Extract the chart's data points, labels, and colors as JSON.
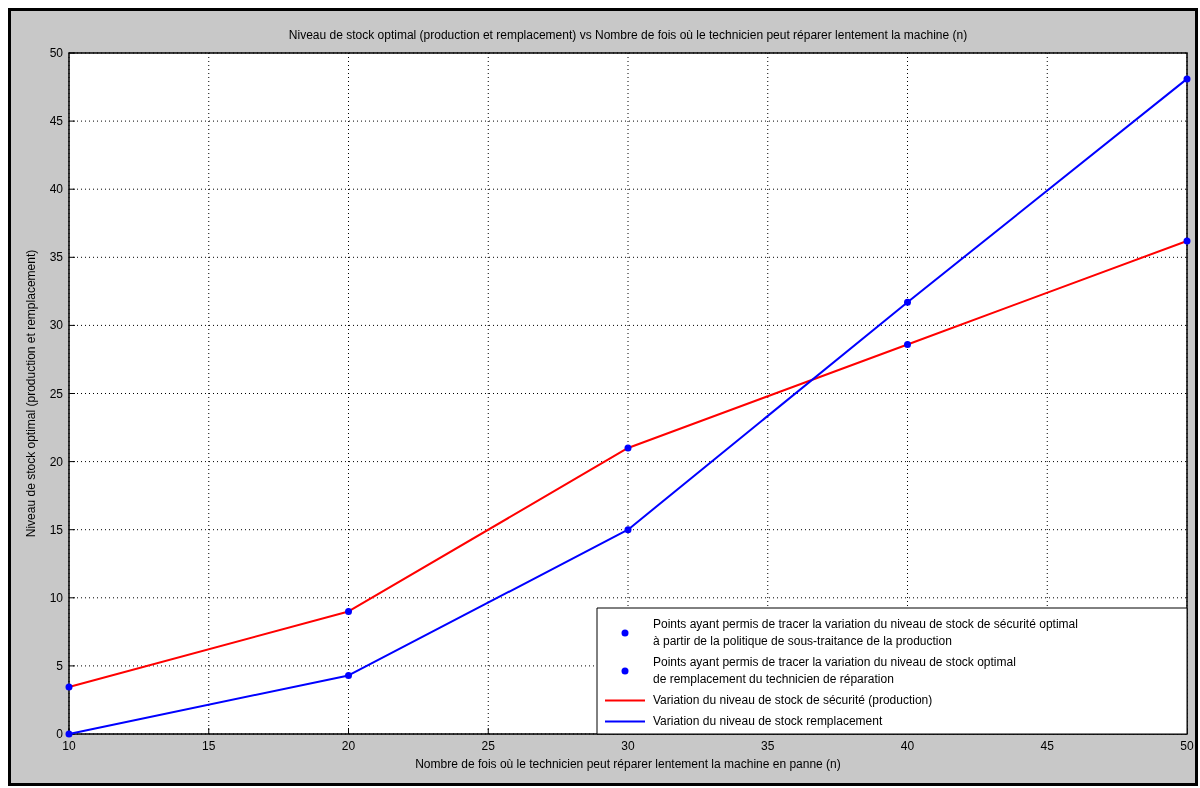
{
  "chart_data": {
    "type": "line",
    "title": "Niveau de stock optimal (production et remplacement) vs Nombre de fois où le technicien peut réparer lentement la machine (n)",
    "xlabel": "Nombre de fois où le technicien peut réparer lentement la machine en panne (n)",
    "ylabel": "Niveau de stock optimal (production et remplacement)",
    "x": [
      10,
      20,
      30,
      40,
      50
    ],
    "xlim": [
      10,
      50
    ],
    "xticks": [
      10,
      15,
      20,
      25,
      30,
      35,
      40,
      45,
      50
    ],
    "ylim": [
      0,
      50
    ],
    "yticks": [
      0,
      5,
      10,
      15,
      20,
      25,
      30,
      35,
      40,
      45,
      50
    ],
    "grid": true,
    "legend": "bottom right",
    "line_style": "solid",
    "series": [
      {
        "name": "Points ayant permis de tracer la variation du niveau de stock de sécurité optimal\nà partir de la politique de sous-traitance de la production",
        "type": "scatter",
        "marker": "circle",
        "color": "#0000ff",
        "values": [
          3.45,
          9,
          21,
          28.6,
          36.2
        ]
      },
      {
        "name": "Points ayant permis de tracer la variation du niveau de stock optimal\nde remplacement du technicien de réparation",
        "type": "scatter",
        "marker": "circle",
        "color": "#0000ff",
        "values": [
          0,
          4.3,
          15,
          31.7,
          48.1
        ]
      },
      {
        "name": "Variation du niveau de stock de sécurité (production)",
        "type": "line",
        "color": "#ff0000",
        "values": [
          3.45,
          9,
          21,
          28.6,
          36.2
        ]
      },
      {
        "name": "Variation du niveau de stock remplacement",
        "type": "line",
        "color": "#0000ff",
        "values": [
          0,
          4.3,
          15,
          31.7,
          48.1
        ]
      }
    ]
  }
}
